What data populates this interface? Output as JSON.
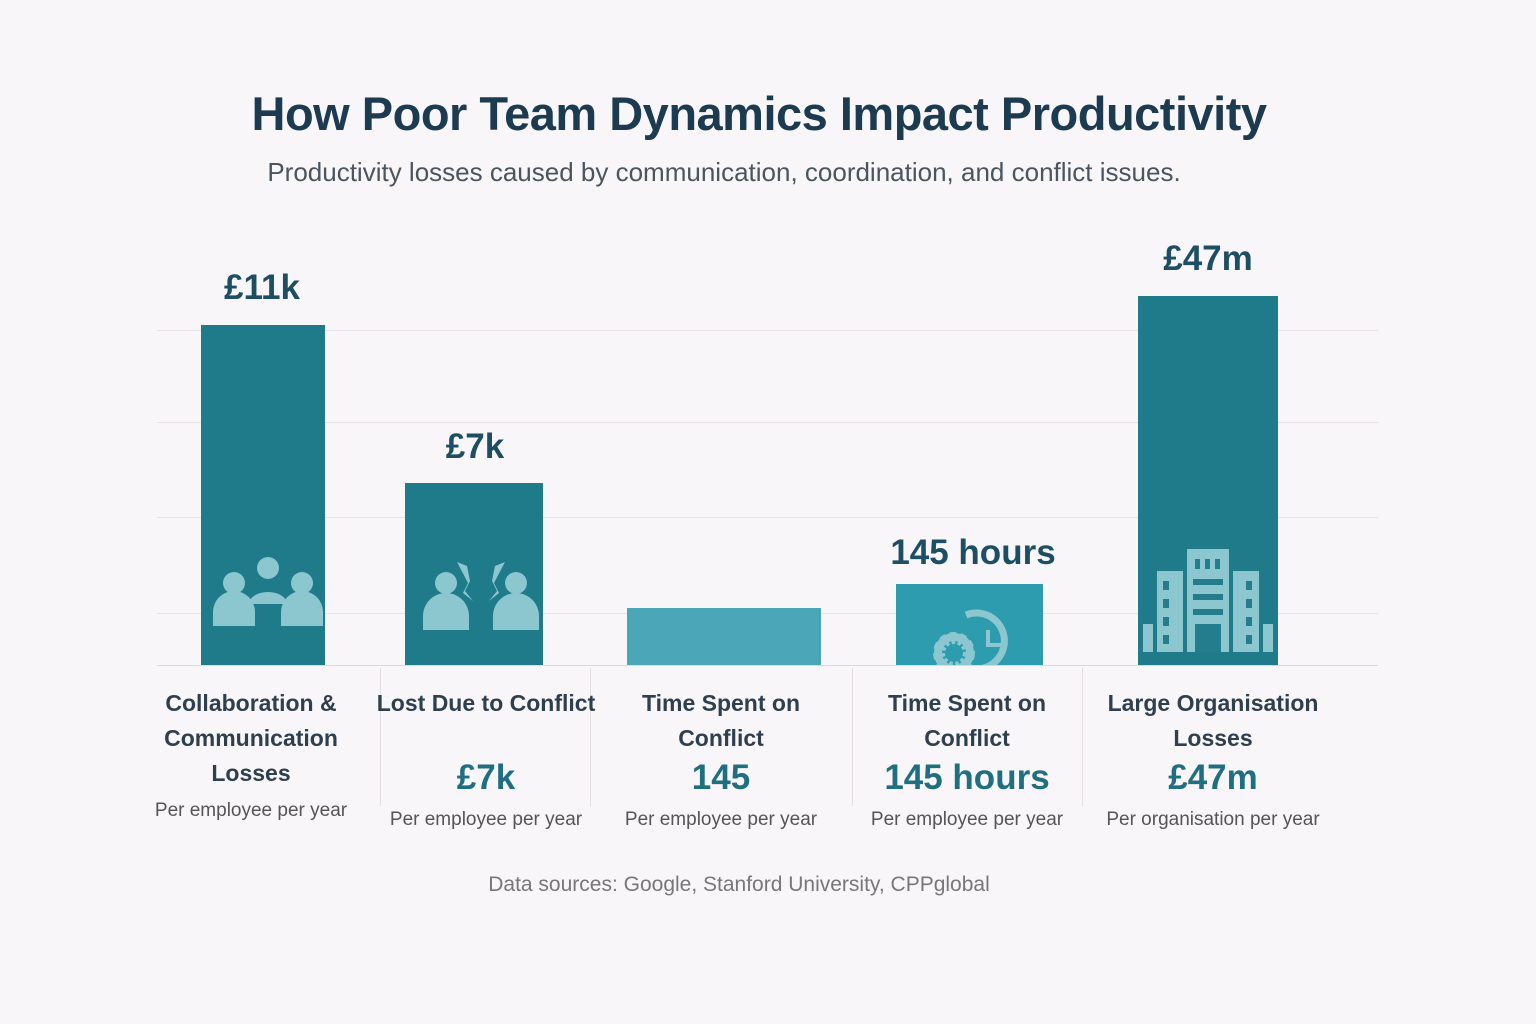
{
  "title": "How Poor Team Dynamics Impact Productivity",
  "subtitle": "Productivity losses caused by communication, coordination, and conflict issues.",
  "source": "Data sources: Google, Stanford University, CPPglobal",
  "chart_data": {
    "type": "bar",
    "title": "How Poor Team Dynamics Impact Productivity",
    "subtitle": "Productivity losses caused by communication, coordination, and conflict issues.",
    "grid": true,
    "categories": [
      "Collaboration & Communication Losses",
      "Lost Due to Conflict",
      "Time Spent on Conflict",
      "Time Spent on Conflict",
      "Large Organisation Losses"
    ],
    "data_labels": [
      "£11k",
      "£7k",
      "",
      "145 hours",
      "£47m"
    ],
    "values_text": [
      "",
      "£7k",
      "145",
      "145 hours",
      "£47m"
    ],
    "units": [
      "Per employee per year",
      "Per employee per year",
      "Per employee per year",
      "Per employee per year",
      "Per organisation per year"
    ],
    "icons": [
      "team-icon",
      "conflict-icon",
      "",
      "gear-clock-icon",
      "building-icon"
    ],
    "colors": [
      "#1f7a8a",
      "#1f7a8a",
      "#4ba7b8",
      "#2e9caf",
      "#1f7a8a"
    ]
  }
}
